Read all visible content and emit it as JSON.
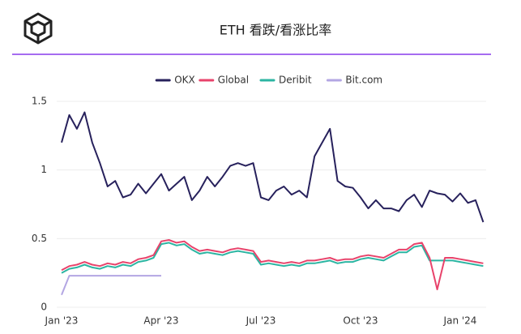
{
  "chart_data": {
    "type": "line",
    "title": "ETH 看跌/看涨比率",
    "categories": [
      "Jan '23",
      null,
      null,
      null,
      null,
      null,
      null,
      null,
      null,
      null,
      null,
      null,
      null,
      "Apr '23",
      null,
      null,
      null,
      null,
      null,
      null,
      null,
      null,
      null,
      null,
      null,
      null,
      "Jul '23",
      null,
      null,
      null,
      null,
      null,
      null,
      null,
      null,
      null,
      null,
      null,
      null,
      "Oct '23",
      null,
      null,
      null,
      null,
      null,
      null,
      null,
      null,
      null,
      null,
      null,
      null,
      "Jan '24",
      null,
      null,
      null
    ],
    "series": [
      {
        "name": "OKX",
        "color": "#27215c",
        "values": [
          1.2,
          1.4,
          1.3,
          1.42,
          1.2,
          1.05,
          0.88,
          0.92,
          0.8,
          0.82,
          0.9,
          0.83,
          0.9,
          0.97,
          0.85,
          0.9,
          0.95,
          0.78,
          0.85,
          0.95,
          0.88,
          0.95,
          1.03,
          1.05,
          1.03,
          1.05,
          0.8,
          0.78,
          0.85,
          0.88,
          0.82,
          0.85,
          0.8,
          1.1,
          1.2,
          1.3,
          0.92,
          0.88,
          0.87,
          0.8,
          0.72,
          0.78,
          0.72,
          0.72,
          0.7,
          0.78,
          0.82,
          0.73,
          0.85,
          0.83,
          0.82,
          0.77,
          0.83,
          0.76,
          0.78,
          0.62
        ]
      },
      {
        "name": "Global",
        "color": "#e8436b",
        "values": [
          0.27,
          0.3,
          0.31,
          0.33,
          0.31,
          0.3,
          0.32,
          0.31,
          0.33,
          0.32,
          0.35,
          0.36,
          0.38,
          0.48,
          0.49,
          0.47,
          0.48,
          0.44,
          0.41,
          0.42,
          0.41,
          0.4,
          0.42,
          0.43,
          0.42,
          0.41,
          0.33,
          0.34,
          0.33,
          0.32,
          0.33,
          0.32,
          0.34,
          0.34,
          0.35,
          0.36,
          0.34,
          0.35,
          0.35,
          0.37,
          0.38,
          0.37,
          0.36,
          0.39,
          0.42,
          0.42,
          0.46,
          0.47,
          0.36,
          0.13,
          0.36,
          0.36,
          0.35,
          0.34,
          0.33,
          0.32
        ]
      },
      {
        "name": "Deribit",
        "color": "#2cb5a2",
        "values": [
          0.25,
          0.28,
          0.29,
          0.31,
          0.29,
          0.28,
          0.3,
          0.29,
          0.31,
          0.3,
          0.33,
          0.34,
          0.36,
          0.46,
          0.47,
          0.45,
          0.46,
          0.42,
          0.39,
          0.4,
          0.39,
          0.38,
          0.4,
          0.41,
          0.4,
          0.39,
          0.31,
          0.32,
          0.31,
          0.3,
          0.31,
          0.3,
          0.32,
          0.32,
          0.33,
          0.34,
          0.32,
          0.33,
          0.33,
          0.35,
          0.36,
          0.35,
          0.34,
          0.37,
          0.4,
          0.4,
          0.44,
          0.45,
          0.34,
          0.34,
          0.34,
          0.34,
          0.33,
          0.32,
          0.31,
          0.3
        ]
      },
      {
        "name": "Bit.com",
        "color": "#b3a6e3",
        "values": [
          0.09,
          0.23,
          0.23,
          0.23,
          0.23,
          0.23,
          0.23,
          0.23,
          0.23,
          0.23,
          0.23,
          0.23,
          0.23,
          0.23,
          null,
          null,
          null,
          null,
          null,
          null,
          null,
          null,
          null,
          null,
          null,
          null,
          null,
          null,
          null,
          null,
          null,
          null,
          null,
          null,
          null,
          null,
          null,
          null,
          null,
          null,
          null,
          null,
          null,
          null,
          null,
          null,
          null,
          null,
          null,
          null,
          null,
          null,
          null,
          null,
          null,
          null
        ]
      }
    ],
    "ylim": [
      0,
      1.5
    ],
    "yticks": [
      0,
      0.5,
      1,
      1.5
    ],
    "grid": true,
    "legend": "top"
  }
}
